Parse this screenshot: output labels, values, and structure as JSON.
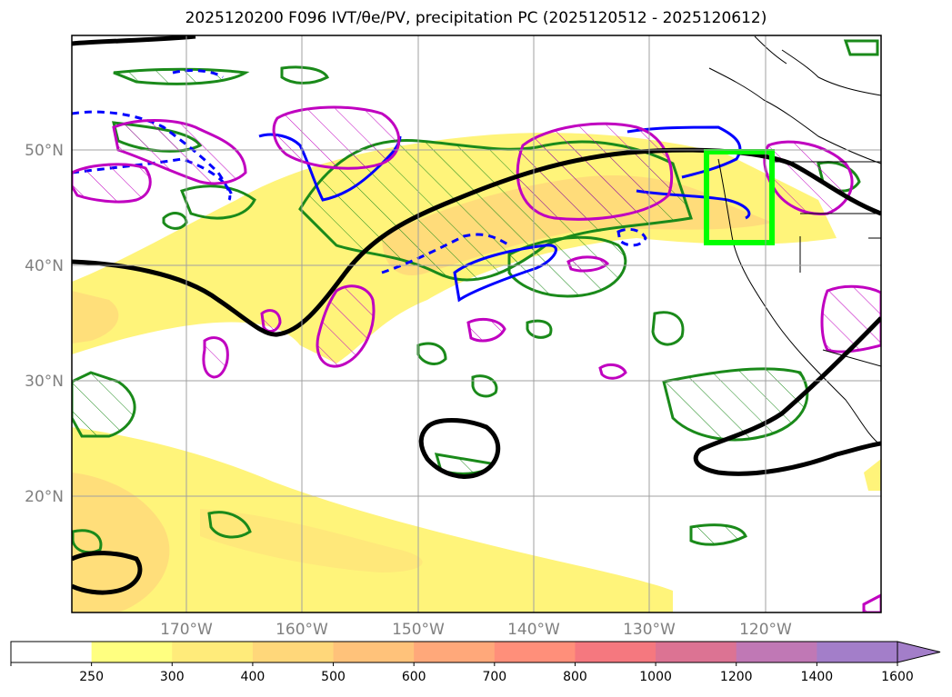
{
  "title": {
    "text": "2025120200 F096 IVT/θe/PV, precipitation PC (2025120512 - 2025120612)"
  },
  "map": {
    "lat_labels": [
      "50°N",
      "40°N",
      "30°N",
      "20°N"
    ],
    "lon_labels": [
      "170°W",
      "160°W",
      "150°W",
      "140°W",
      "130°W",
      "120°W"
    ]
  },
  "colorbar": {
    "labels": [
      "250",
      "300",
      "400",
      "500",
      "600",
      "700",
      "800",
      "1000",
      "1200",
      "1400",
      "1600"
    ],
    "colors": [
      "#ffffff",
      "#ffff80",
      "#ffeb7a",
      "#ffd77a",
      "#ffc27a",
      "#ffa87a",
      "#ff8f7a",
      "#f5787f",
      "#dc7393",
      "#c078b5",
      "#a37ec9"
    ],
    "extend": "max"
  },
  "colors": {
    "ivt_fill_light": "#fff47a",
    "ivt_fill_mid": "#ffd97a",
    "theta_e_contour": "#1a8a1a",
    "pv_contour": "#0000ff",
    "pv_high_contour": "#c000c0",
    "jet_line": "#000000",
    "target_box": "#00ff00"
  }
}
